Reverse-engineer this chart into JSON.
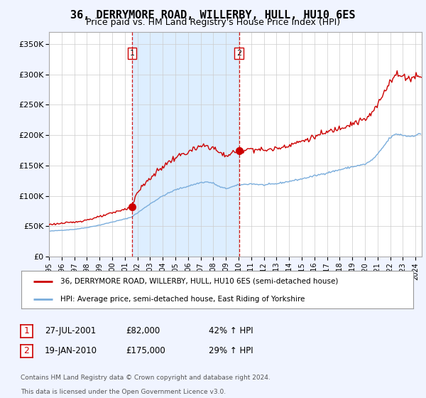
{
  "title": "36, DERRYMORE ROAD, WILLERBY, HULL, HU10 6ES",
  "subtitle": "Price paid vs. HM Land Registry's House Price Index (HPI)",
  "legend_line1": "36, DERRYMORE ROAD, WILLERBY, HULL, HU10 6ES (semi-detached house)",
  "legend_line2": "HPI: Average price, semi-detached house, East Riding of Yorkshire",
  "footer1": "Contains HM Land Registry data © Crown copyright and database right 2024.",
  "footer2": "This data is licensed under the Open Government Licence v3.0.",
  "sale1_date": "27-JUL-2001",
  "sale1_price": "£82,000",
  "sale1_hpi": "42% ↑ HPI",
  "sale2_date": "19-JAN-2010",
  "sale2_price": "£175,000",
  "sale2_hpi": "29% ↑ HPI",
  "sale1_x": 2001.57,
  "sale1_y": 82000,
  "sale2_x": 2010.05,
  "sale2_y": 175000,
  "vline1_x": 2001.57,
  "vline2_x": 2010.05,
  "hpi_color": "#7aaddc",
  "price_color": "#cc0000",
  "shade_color": "#ddeeff",
  "bg_color": "#f0f4ff",
  "plot_bg": "#ffffff",
  "ylim": [
    0,
    370000
  ],
  "xlim_start": 1995.0,
  "xlim_end": 2024.5
}
